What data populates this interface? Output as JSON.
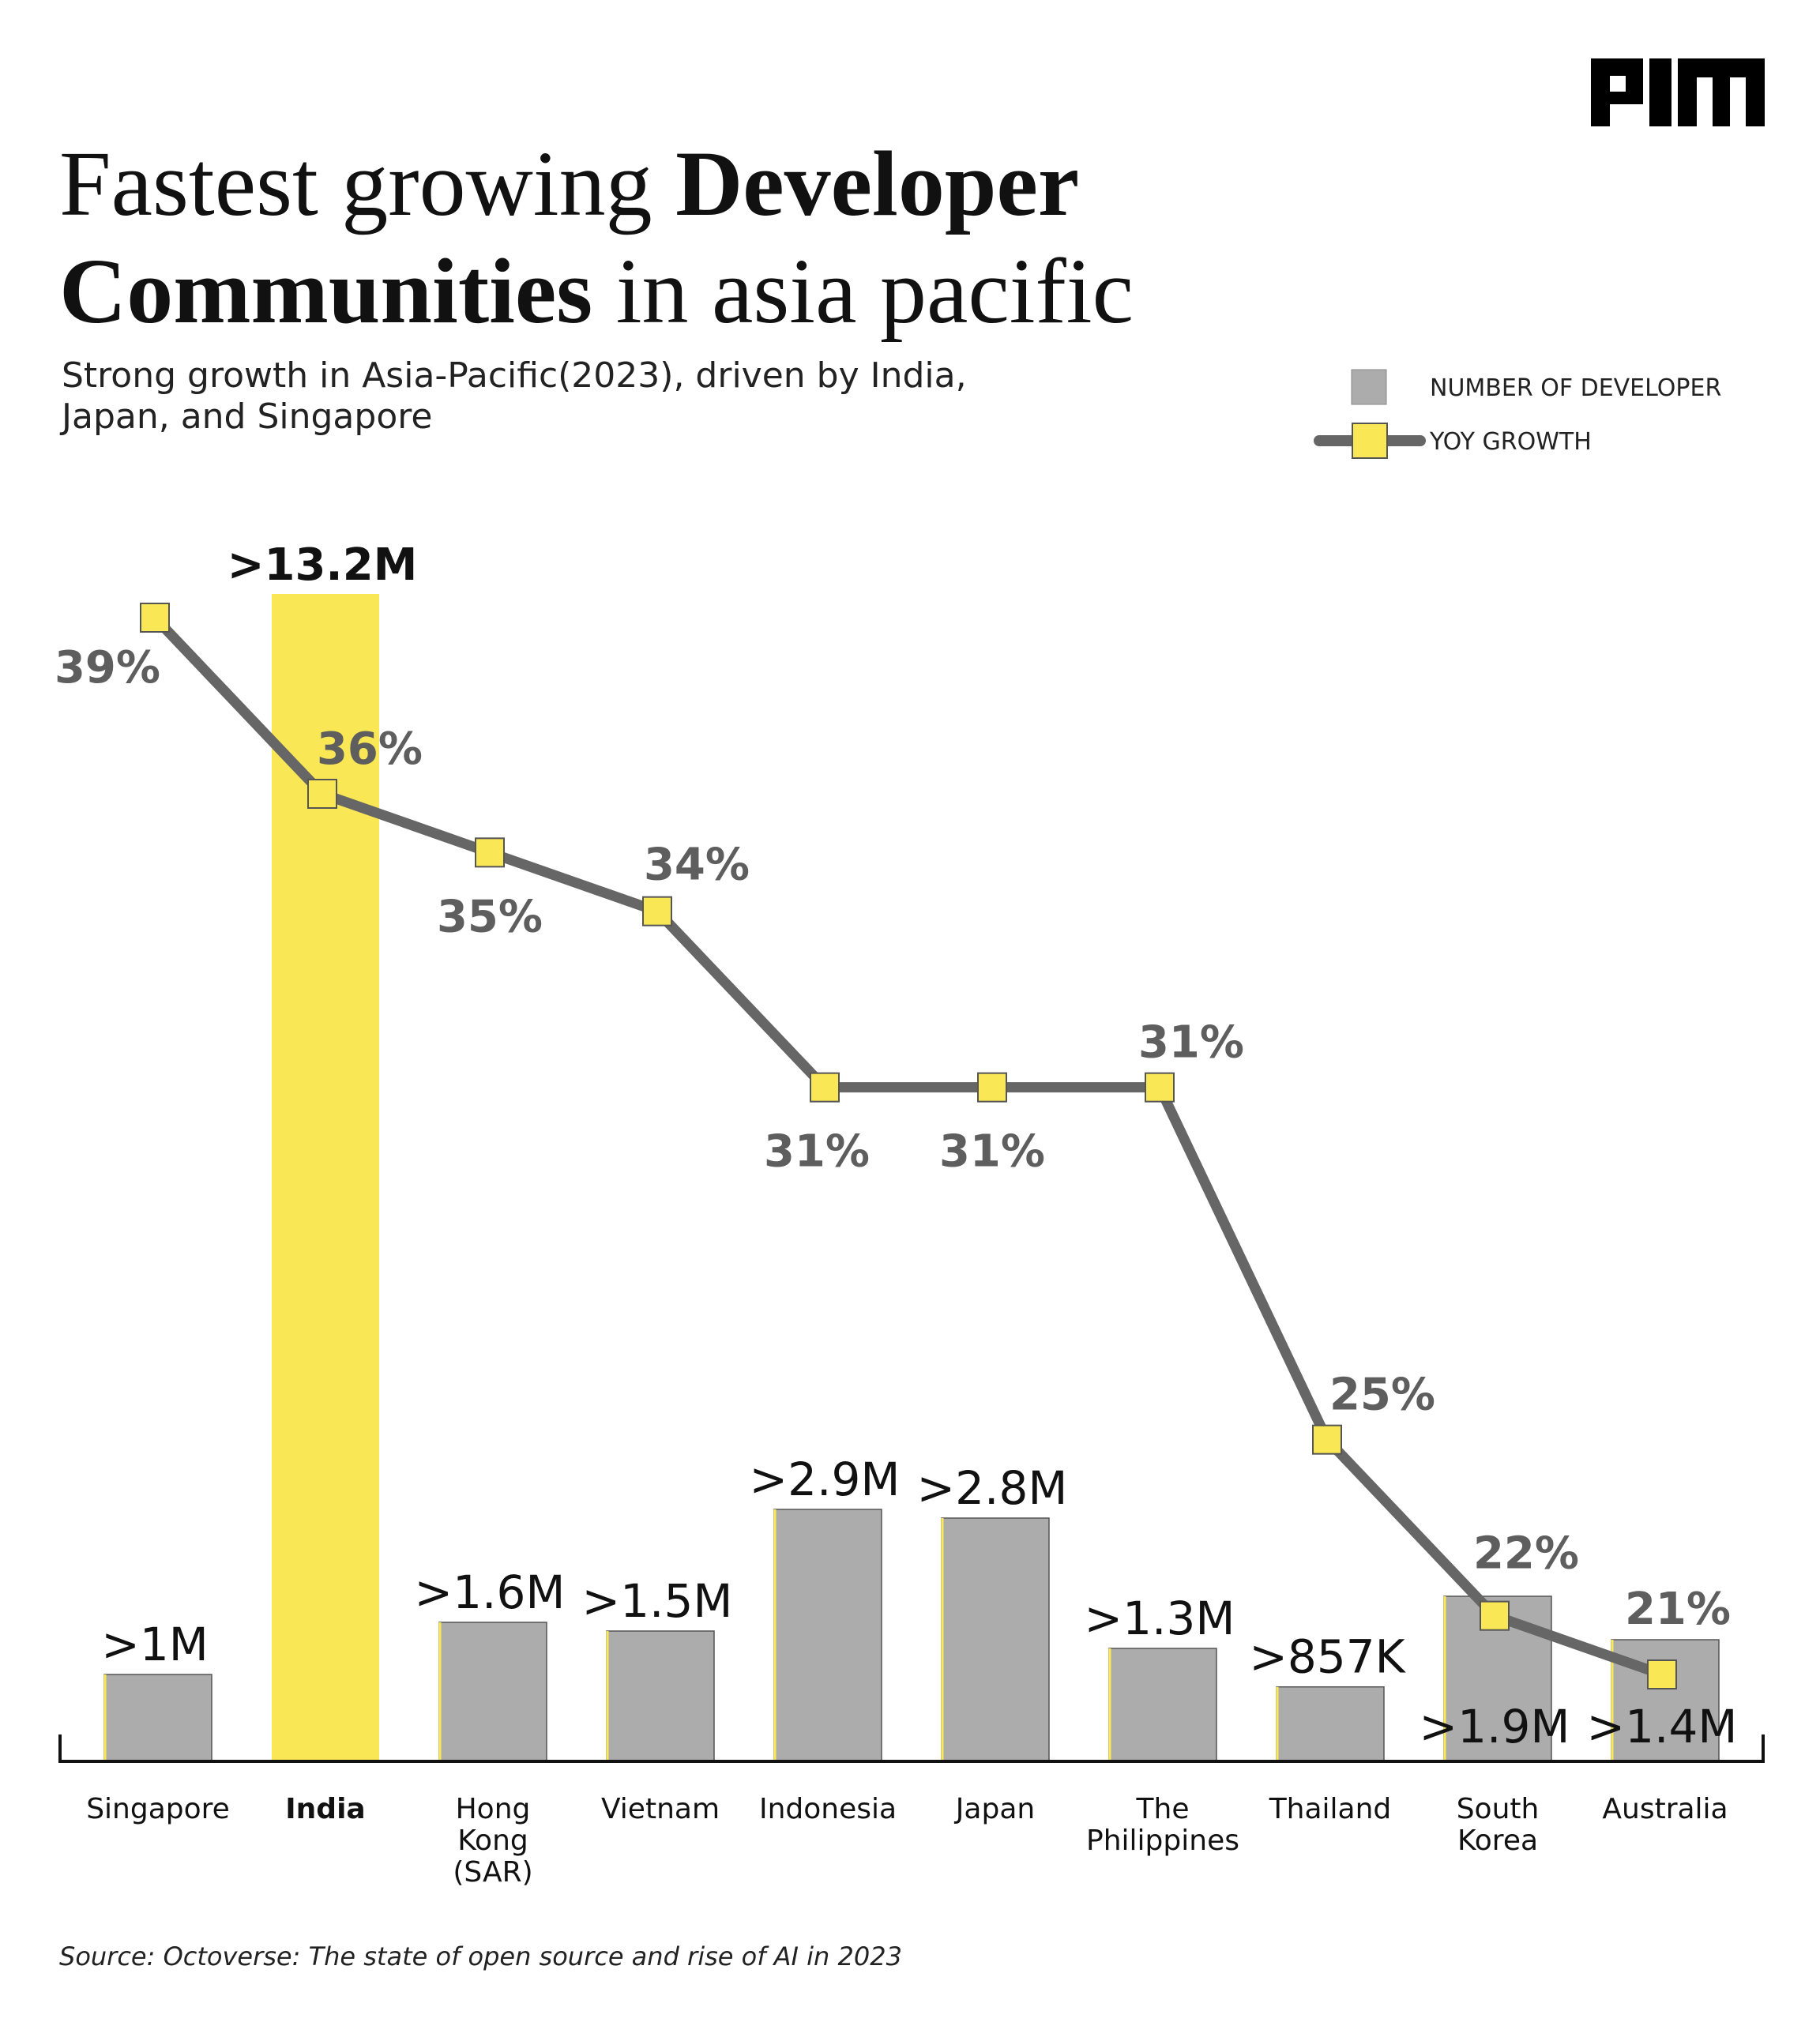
{
  "header": {
    "title_part1": "Fastest growing ",
    "title_bold1": "Developer",
    "title_bold2": "Communities",
    "title_part2": " in asia pacific",
    "subtitle_line1": "Strong growth in Asia-Pacific(2023), driven by India,",
    "subtitle_line2": "Japan, and Singapore",
    "logo": "AIM"
  },
  "legend": {
    "bar_label": "NUMBER OF DEVELOPER",
    "line_label": "YOY GROWTH"
  },
  "colors": {
    "bar": "#acacac",
    "highlight_bar": "#f9e755",
    "line": "#666666",
    "marker": "#f9e755",
    "growth_label": "#5e5e5e",
    "text": "#111111"
  },
  "chart_data": {
    "type": "bar",
    "categories": [
      "Singapore",
      "India",
      "Hong Kong (SAR)",
      "Vietnam",
      "Indonesia",
      "Japan",
      "The Philippines",
      "Thailand",
      "South Korea",
      "Australia"
    ],
    "category_lines": [
      [
        "Singapore"
      ],
      [
        "India"
      ],
      [
        "Hong",
        "Kong",
        "(SAR)"
      ],
      [
        "Vietnam"
      ],
      [
        "Indonesia"
      ],
      [
        "Japan"
      ],
      [
        "The",
        "Philippines"
      ],
      [
        "Thailand"
      ],
      [
        "South",
        "Korea"
      ],
      [
        "Australia"
      ]
    ],
    "highlight_category": "India",
    "series": [
      {
        "name": "NUMBER OF DEVELOPER",
        "type": "bar",
        "values_millions": [
          1.0,
          13.2,
          1.6,
          1.5,
          2.9,
          2.8,
          1.3,
          0.857,
          1.9,
          1.4
        ],
        "labels": [
          ">1M",
          ">13.2M",
          ">1.6M",
          ">1.5M",
          ">2.9M",
          ">2.8M",
          ">1.3M",
          ">857K",
          ">1.9M",
          ">1.4M"
        ]
      },
      {
        "name": "YOY GROWTH",
        "type": "line",
        "values_percent": [
          39,
          36,
          35,
          34,
          31,
          31,
          31,
          25,
          22,
          21
        ],
        "labels": [
          "39%",
          "36%",
          "35%",
          "34%",
          "31%",
          "31%",
          "31%",
          "25%",
          "22%",
          "21%"
        ]
      }
    ],
    "legend_position": "top-right",
    "grid": false
  },
  "source": "Source: Octoverse: The state of open source and rise of AI in 2023"
}
